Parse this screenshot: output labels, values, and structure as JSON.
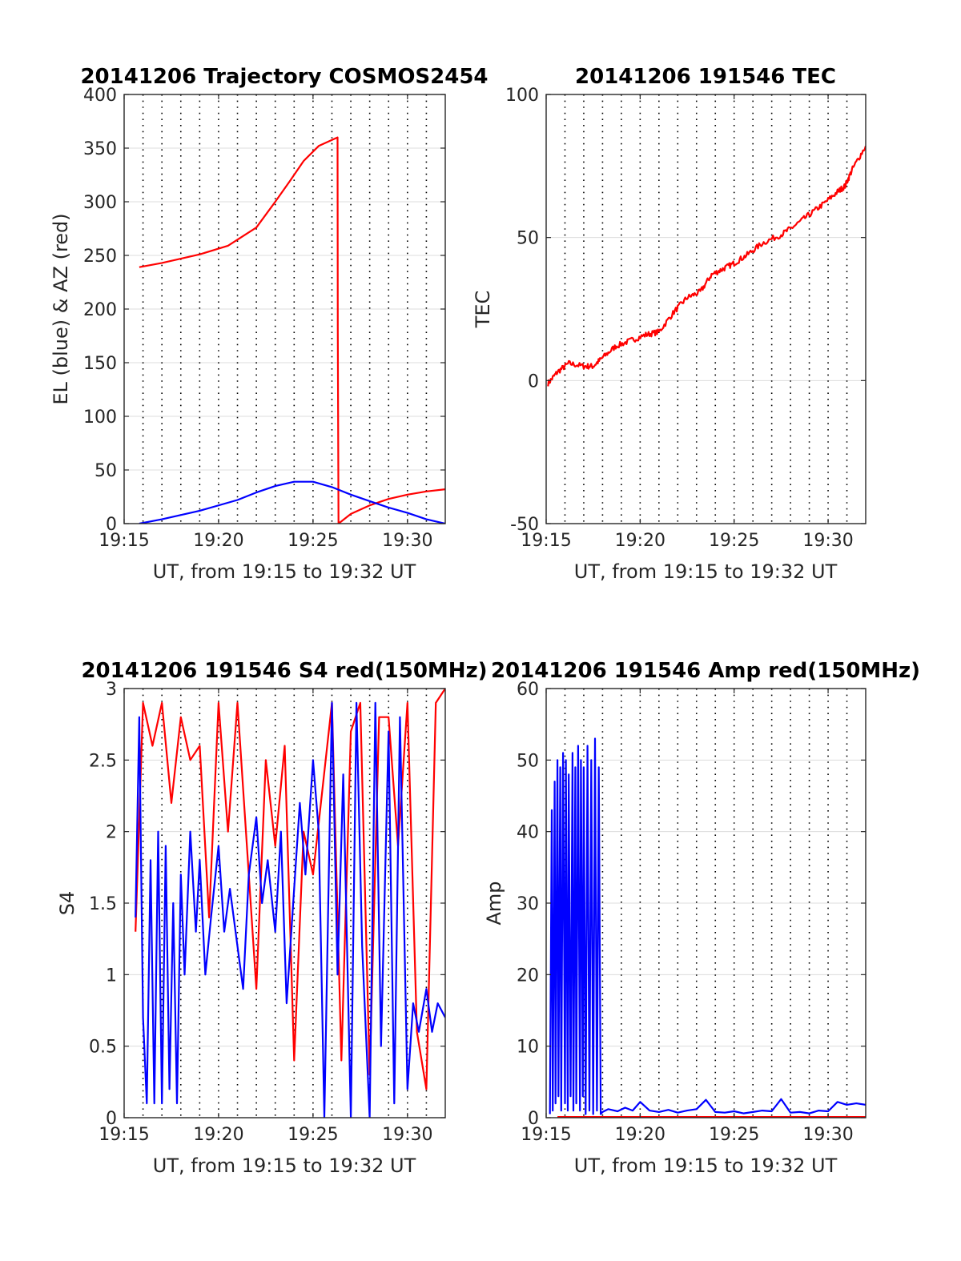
{
  "colors": {
    "red": "#ff0000",
    "blue": "#0000ff",
    "axis": "#262626",
    "grid": "#dcdcdc",
    "vline": "#000000"
  },
  "chart_data": [
    {
      "id": "trajectory",
      "type": "line",
      "title": "20141206 Trajectory COSMOS2454",
      "xlabel": "UT, from 19:15 to 19:32 UT",
      "ylabel": "EL (blue) & AZ (red)",
      "xlim": [
        0,
        17
      ],
      "ylim": [
        0,
        400
      ],
      "xticks": [
        0,
        5,
        10,
        15
      ],
      "xtick_labels": [
        "19:15",
        "19:20",
        "19:25",
        "19:30"
      ],
      "yticks": [
        0,
        50,
        100,
        150,
        200,
        250,
        300,
        350,
        400
      ],
      "ytick_labels": [
        "0",
        "50",
        "100",
        "150",
        "200",
        "250",
        "300",
        "350",
        "400"
      ],
      "grid": true,
      "dotted_minutes": [
        1,
        2,
        3,
        4,
        5,
        6,
        7,
        8,
        9,
        10,
        11,
        12,
        13,
        14,
        15,
        16
      ],
      "series": [
        {
          "color": "red",
          "x": [
            0.8,
            2,
            4,
            5.5,
            7,
            8,
            8.8,
            9.5,
            10.3,
            11.3,
            11.31,
            11.35,
            12,
            13,
            14,
            15,
            16,
            17
          ],
          "y": [
            239,
            243,
            251,
            259,
            276,
            300,
            320,
            338,
            352,
            360,
            180,
            0,
            9,
            17,
            23,
            27,
            30,
            32
          ]
        },
        {
          "color": "blue",
          "x": [
            0.8,
            2,
            4,
            6,
            7,
            8,
            9,
            10,
            11,
            12,
            13,
            14,
            15,
            16,
            17
          ],
          "y": [
            0,
            4,
            12,
            22,
            29,
            35,
            39,
            39,
            34,
            27,
            21,
            15,
            10,
            4,
            0
          ]
        }
      ]
    },
    {
      "id": "tec",
      "type": "line",
      "title": "20141206 191546 TEC",
      "xlabel": "UT, from 19:15 to 19:32 UT",
      "ylabel": "TEC",
      "xlim": [
        0,
        17
      ],
      "ylim": [
        -50,
        100
      ],
      "xticks": [
        0,
        5,
        10,
        15
      ],
      "xtick_labels": [
        "19:15",
        "19:20",
        "19:25",
        "19:30"
      ],
      "yticks": [
        -50,
        0,
        50,
        100
      ],
      "ytick_labels": [
        "-50",
        "0",
        "50",
        "100"
      ],
      "grid": true,
      "dotted_minutes": [
        1,
        2,
        3,
        4,
        5,
        6,
        7,
        8,
        9,
        10,
        11,
        12,
        13,
        14,
        15,
        16
      ],
      "noise": 1.0,
      "series": [
        {
          "color": "red",
          "x": [
            0.1,
            0.6,
            1.2,
            2.0,
            2.5,
            3.0,
            3.7,
            4.5,
            5.3,
            6.0,
            6.8,
            7.5,
            8.2,
            8.8,
            9.4,
            10.0,
            10.7,
            11.5,
            12.5,
            13.2,
            14.0,
            14.8,
            15.5,
            15.9,
            16.3,
            17.0
          ],
          "y": [
            -1,
            3,
            6,
            5,
            5,
            8,
            12,
            14,
            16,
            17,
            24,
            29,
            31,
            37,
            39,
            41,
            44,
            48,
            51,
            54,
            58,
            62,
            66,
            68,
            74,
            82
          ]
        }
      ]
    },
    {
      "id": "s4",
      "type": "line",
      "title": "20141206 191546 S4 red(150MHz)",
      "xlabel": "UT, from 19:15 to 19:32 UT",
      "ylabel": "S4",
      "xlim": [
        0,
        17
      ],
      "ylim": [
        0,
        3
      ],
      "xticks": [
        0,
        5,
        10,
        15
      ],
      "xtick_labels": [
        "19:15",
        "19:20",
        "19:25",
        "19:30"
      ],
      "yticks": [
        0,
        0.5,
        1,
        1.5,
        2,
        2.5,
        3
      ],
      "ytick_labels": [
        "0",
        "0.5",
        "1",
        "1.5",
        "2",
        "2.5",
        "3"
      ],
      "grid": true,
      "dotted_minutes": [
        1,
        2,
        3,
        4,
        5,
        6,
        7,
        8,
        9,
        10,
        11,
        12,
        13,
        14,
        15,
        16
      ],
      "series": [
        {
          "color": "red",
          "x": [
            0.6,
            1.0,
            1.5,
            2.0,
            2.5,
            3.0,
            3.5,
            4.0,
            4.5,
            5.0,
            5.5,
            6.0,
            6.5,
            7.0,
            7.5,
            8.0,
            8.5,
            9.0,
            9.5,
            10.0,
            10.5,
            11.0,
            11.5,
            12.0,
            12.5,
            13.0,
            13.5,
            14.0,
            14.5,
            15.0,
            15.5,
            16.0,
            16.5,
            17.0
          ],
          "y": [
            1.3,
            2.9,
            2.6,
            2.9,
            2.2,
            2.8,
            2.5,
            2.6,
            1.4,
            2.9,
            2.0,
            2.9,
            1.9,
            0.9,
            2.5,
            1.9,
            2.6,
            0.4,
            2.0,
            1.7,
            2.3,
            2.9,
            0.4,
            2.7,
            2.9,
            0.3,
            2.8,
            2.8,
            1.9,
            2.9,
            0.6,
            0.2,
            2.9,
            3.0
          ]
        },
        {
          "color": "blue",
          "x": [
            0.6,
            0.8,
            1.0,
            1.2,
            1.4,
            1.6,
            1.8,
            2.0,
            2.2,
            2.4,
            2.6,
            2.8,
            3.0,
            3.2,
            3.5,
            3.8,
            4.0,
            4.3,
            4.6,
            5.0,
            5.3,
            5.6,
            6.0,
            6.3,
            6.6,
            7.0,
            7.3,
            7.6,
            8.0,
            8.3,
            8.6,
            9.0,
            9.3,
            9.6,
            10.0,
            10.3,
            10.6,
            11.0,
            11.3,
            11.6,
            12.0,
            12.3,
            12.6,
            13.0,
            13.3,
            13.6,
            14.0,
            14.3,
            14.6,
            15.0,
            15.3,
            15.6,
            16.0,
            16.3,
            16.6,
            17.0
          ],
          "y": [
            1.4,
            2.8,
            0.7,
            0.1,
            1.8,
            0.1,
            2.0,
            0.1,
            1.9,
            0.2,
            1.5,
            0.1,
            1.7,
            1.0,
            2.0,
            1.3,
            1.8,
            1.0,
            1.4,
            1.9,
            1.3,
            1.6,
            1.2,
            0.9,
            1.7,
            2.1,
            1.5,
            1.8,
            1.3,
            2.0,
            0.8,
            1.6,
            2.2,
            1.7,
            2.5,
            2.0,
            0.0,
            2.9,
            1.0,
            2.4,
            0.0,
            2.9,
            1.2,
            0.0,
            2.9,
            0.5,
            2.7,
            0.1,
            2.8,
            0.2,
            0.8,
            0.6,
            0.9,
            0.6,
            0.8,
            0.7
          ]
        }
      ]
    },
    {
      "id": "amp",
      "type": "line",
      "title": "20141206 191546 Amp red(150MHz)",
      "xlabel": "UT, from 19:15 to 19:32 UT",
      "ylabel": "Amp",
      "xlim": [
        0,
        17
      ],
      "ylim": [
        0,
        60
      ],
      "xticks": [
        0,
        5,
        10,
        15
      ],
      "xtick_labels": [
        "19:15",
        "19:20",
        "19:25",
        "19:30"
      ],
      "yticks": [
        0,
        10,
        20,
        30,
        40,
        50,
        60
      ],
      "ytick_labels": [
        "0",
        "10",
        "20",
        "30",
        "40",
        "50",
        "60"
      ],
      "grid": true,
      "dotted_minutes": [
        1,
        2,
        3,
        4,
        5,
        6,
        7,
        8,
        9,
        10,
        11,
        12,
        13,
        14,
        15,
        16
      ],
      "series": [
        {
          "color": "red",
          "x": [
            0.6,
            17.0
          ],
          "y": [
            0.1,
            0.1
          ]
        },
        {
          "color": "blue",
          "x": [
            0.2,
            0.3,
            0.35,
            0.45,
            0.5,
            0.6,
            0.65,
            0.75,
            0.8,
            0.9,
            1.0,
            1.05,
            1.15,
            1.2,
            1.3,
            1.4,
            1.45,
            1.55,
            1.6,
            1.7,
            1.8,
            1.85,
            1.95,
            2.0,
            2.1,
            2.2,
            2.3,
            2.4,
            2.5,
            2.6,
            2.7,
            2.8,
            2.9,
            3.0,
            3.3,
            3.8,
            4.2,
            4.6,
            5.0,
            5.5,
            6.0,
            6.5,
            7.0,
            7.5,
            8.0,
            8.5,
            9.0,
            9.5,
            10.0,
            10.5,
            11.0,
            11.5,
            12.0,
            12.5,
            13.0,
            13.5,
            14.0,
            14.5,
            15.0,
            15.5,
            16.0,
            16.5,
            17.0
          ],
          "y": [
            0.5,
            43,
            1,
            47,
            2,
            50,
            3,
            49,
            1,
            51,
            2,
            50,
            1,
            48,
            3,
            51,
            1,
            49,
            2,
            52,
            1,
            50,
            3,
            49,
            0.5,
            52,
            1,
            50,
            0.5,
            53,
            1,
            49,
            0.5,
            0.8,
            1.2,
            0.9,
            1.4,
            1.0,
            2.2,
            1.0,
            0.8,
            1.1,
            0.7,
            1.0,
            1.2,
            2.5,
            0.8,
            0.7,
            0.9,
            0.6,
            0.8,
            1.0,
            0.9,
            2.6,
            0.7,
            0.8,
            0.6,
            1.0,
            0.9,
            2.2,
            1.8,
            2.0,
            1.8
          ]
        }
      ]
    }
  ]
}
